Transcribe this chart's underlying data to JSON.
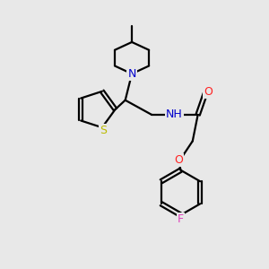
{
  "bg_color": "#e8e8e8",
  "bond_color": "#000000",
  "atom_colors": {
    "N": "#0000cc",
    "O": "#ff2222",
    "S": "#bbbb00",
    "F": "#dd44bb",
    "C": "#000000"
  },
  "line_width": 1.6,
  "figsize": [
    3.0,
    3.0
  ],
  "dpi": 100
}
